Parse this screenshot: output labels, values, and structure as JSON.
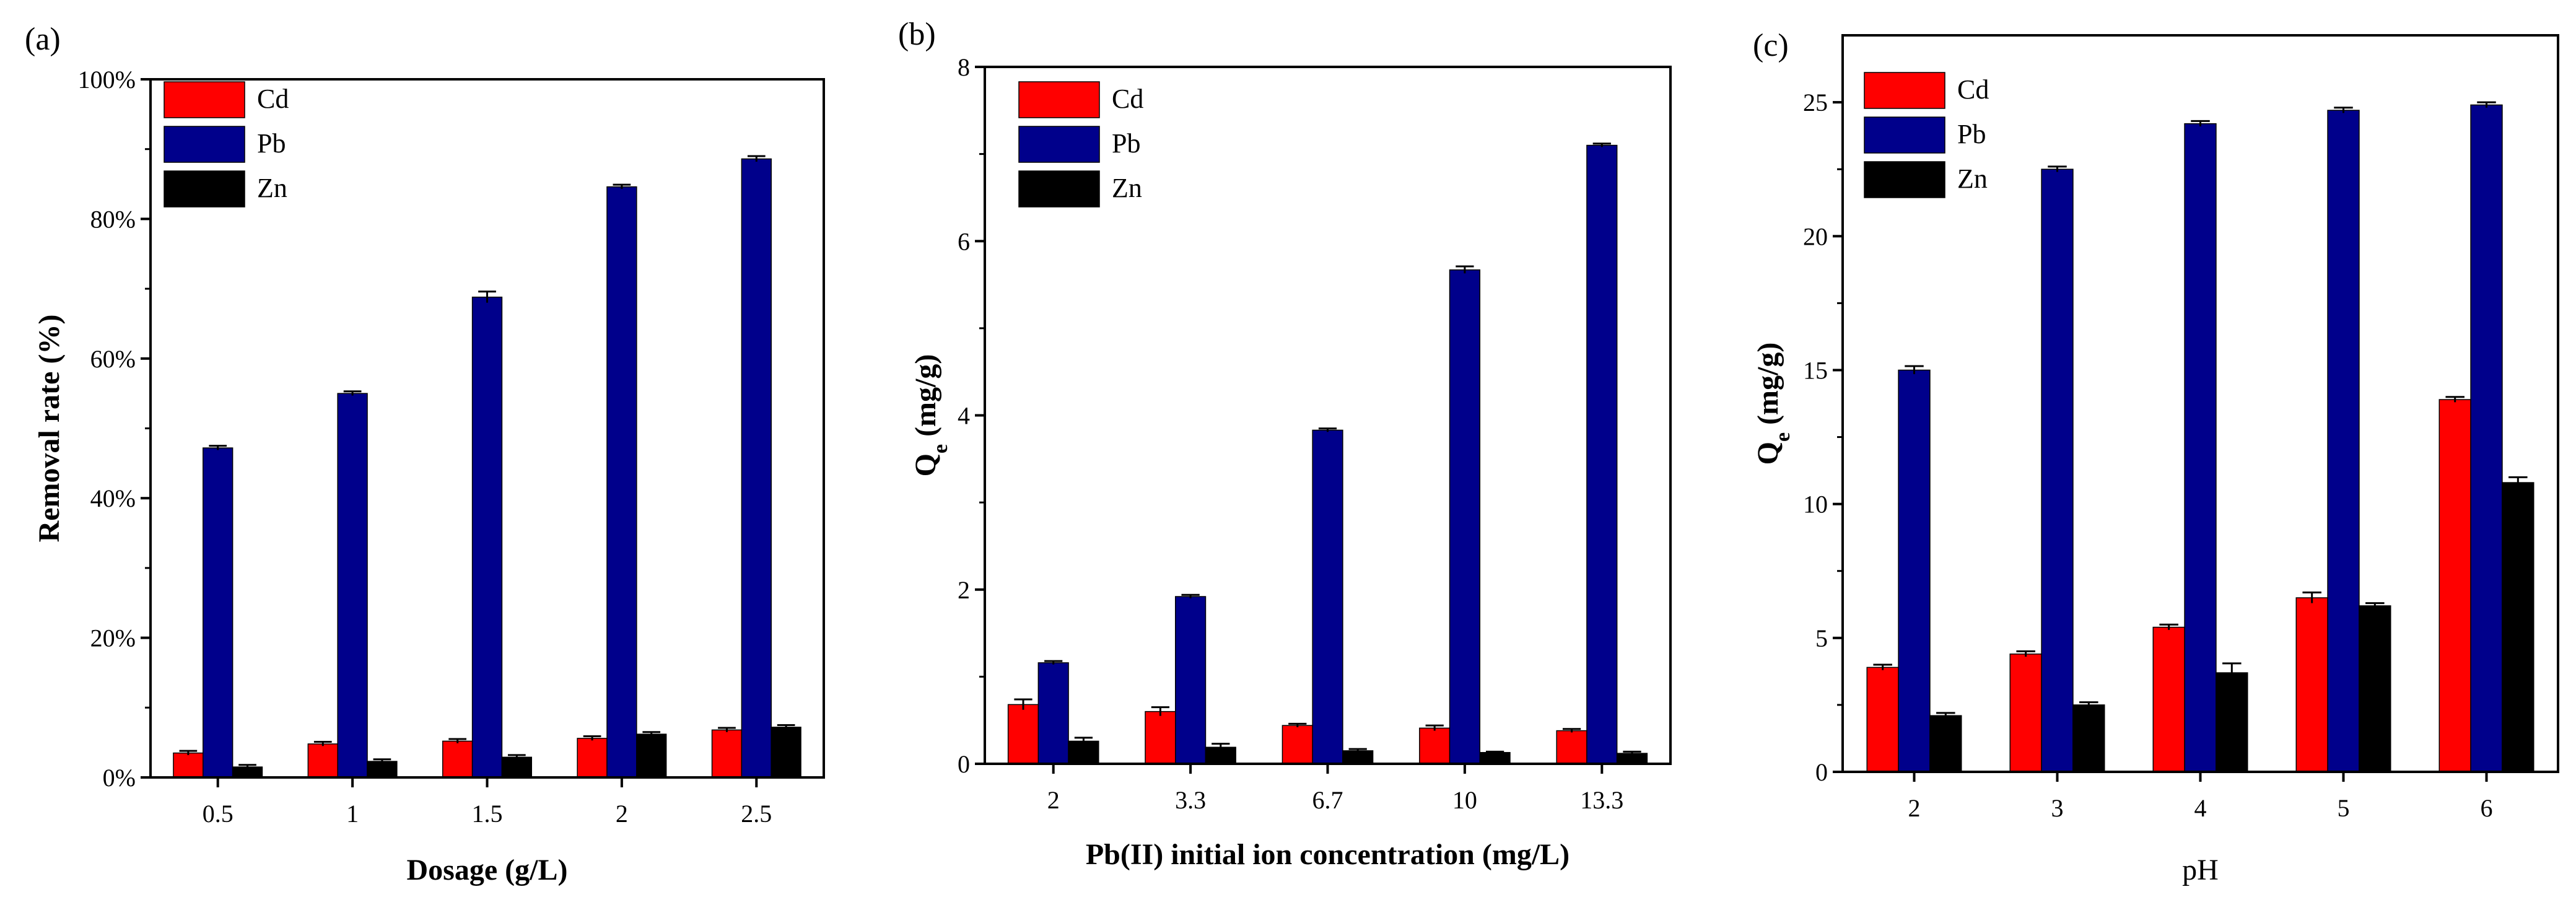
{
  "chart_data": [
    {
      "panel_label": "(a)",
      "type": "bar",
      "xlabel": "Dosage (g/L)",
      "ylabel": "Removal rate (%)",
      "ylabel_bold": true,
      "xlabel_bold": true,
      "ylim": [
        0,
        100
      ],
      "yticks": [
        0,
        20,
        40,
        60,
        80,
        100
      ],
      "ytick_labels": [
        "0%",
        "20%",
        "40%",
        "60%",
        "80%",
        "100%"
      ],
      "categories": [
        "0.5",
        "1",
        "1.5",
        "2",
        "2.5"
      ],
      "series": [
        {
          "name": "Cd",
          "color": "#ff0000",
          "values": [
            3.5,
            4.8,
            5.2,
            5.6,
            6.8
          ],
          "errors": [
            0.3,
            0.3,
            0.3,
            0.3,
            0.3
          ]
        },
        {
          "name": "Pb",
          "color": "#00008b",
          "values": [
            47.2,
            55.0,
            68.8,
            84.6,
            88.6
          ],
          "errors": [
            0.3,
            0.3,
            0.8,
            0.3,
            0.4
          ]
        },
        {
          "name": "Zn",
          "color": "#000000",
          "values": [
            1.5,
            2.3,
            2.9,
            6.2,
            7.2
          ],
          "errors": [
            0.3,
            0.3,
            0.3,
            0.3,
            0.3
          ]
        }
      ],
      "legend": "top-left"
    },
    {
      "panel_label": "(b)",
      "type": "bar",
      "xlabel": "Pb(II) initial ion concentration (mg/L)",
      "ylabel": "Qe (mg/g)",
      "ylabel_main": "Q",
      "ylabel_sub": "e",
      "ylabel_rest": " (mg/g)",
      "ylabel_bold": true,
      "xlabel_bold": true,
      "ylim": [
        0,
        8
      ],
      "yticks": [
        0,
        2,
        4,
        6,
        8
      ],
      "ytick_labels": [
        "0",
        "2",
        "4",
        "6",
        "8"
      ],
      "categories": [
        "2",
        "3.3",
        "6.7",
        "10",
        "13.3"
      ],
      "series": [
        {
          "name": "Cd",
          "color": "#ff0000",
          "values": [
            0.68,
            0.6,
            0.44,
            0.41,
            0.38
          ],
          "errors": [
            0.06,
            0.05,
            0.02,
            0.03,
            0.02
          ]
        },
        {
          "name": "Pb",
          "color": "#00008b",
          "values": [
            1.16,
            1.92,
            3.83,
            5.67,
            7.1
          ],
          "errors": [
            0.02,
            0.02,
            0.02,
            0.04,
            0.02
          ]
        },
        {
          "name": "Zn",
          "color": "#000000",
          "values": [
            0.26,
            0.19,
            0.15,
            0.13,
            0.12
          ],
          "errors": [
            0.04,
            0.04,
            0.02,
            0.01,
            0.02
          ]
        }
      ],
      "legend": "top-left"
    },
    {
      "panel_label": "(c)",
      "type": "bar",
      "xlabel": "pH",
      "ylabel": "Qe (mg/g)",
      "ylabel_main": "Q",
      "ylabel_sub": "e",
      "ylabel_rest": " (mg/g)",
      "ylabel_bold": true,
      "xlabel_bold": false,
      "ylim": [
        0,
        27.5
      ],
      "yticks": [
        0,
        5,
        10,
        15,
        20,
        25
      ],
      "ytick_labels": [
        "0",
        "5",
        "10",
        "15",
        "20",
        "25"
      ],
      "categories": [
        "2",
        "3",
        "4",
        "5",
        "6"
      ],
      "series": [
        {
          "name": "Cd",
          "color": "#ff0000",
          "values": [
            3.9,
            4.4,
            5.4,
            6.5,
            13.9
          ],
          "errors": [
            0.1,
            0.1,
            0.1,
            0.2,
            0.1
          ]
        },
        {
          "name": "Pb",
          "color": "#00008b",
          "values": [
            15.0,
            22.5,
            24.2,
            24.7,
            24.9
          ],
          "errors": [
            0.15,
            0.1,
            0.1,
            0.1,
            0.1
          ]
        },
        {
          "name": "Zn",
          "color": "#000000",
          "values": [
            2.1,
            2.5,
            3.7,
            6.2,
            10.8
          ],
          "errors": [
            0.1,
            0.1,
            0.35,
            0.1,
            0.2
          ]
        }
      ],
      "legend": "top-left"
    }
  ]
}
